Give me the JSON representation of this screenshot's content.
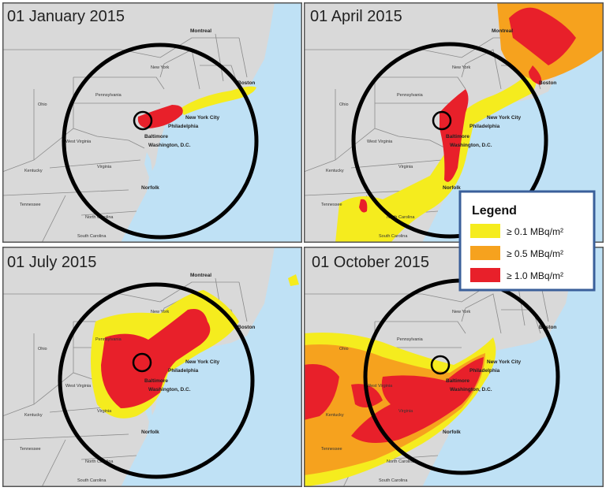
{
  "panels": [
    {
      "title": "01 January 2015"
    },
    {
      "title": "01 April 2015"
    },
    {
      "title": "01 July 2015"
    },
    {
      "title": "01 October 2015"
    }
  ],
  "map_labels": [
    "Montreal",
    "Boston",
    "New York City",
    "Philadelphia",
    "Baltimore",
    "Washington, D.C.",
    "Norfolk",
    "New York",
    "Pennsylvania",
    "Ohio",
    "West Virginia",
    "Virginia",
    "Kentucky",
    "North Carolina",
    "Tennessee",
    "South Carolina"
  ],
  "legend": {
    "title": "Legend",
    "items": [
      "≥ 0.1 MBq/m²",
      "≥ 0.5 MBq/m²",
      "≥ 1.0 MBq/m²"
    ]
  }
}
